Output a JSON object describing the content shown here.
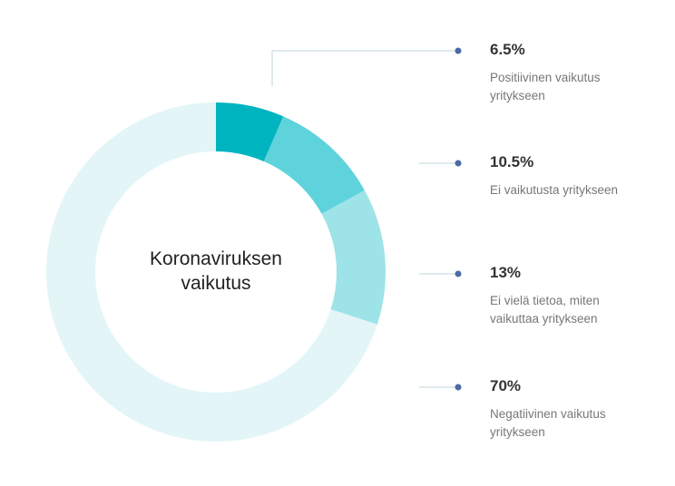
{
  "chart_data": {
    "type": "pie",
    "donut": true,
    "center_label": "Koronaviruksen vaikutus",
    "categories": [
      "Positiivinen vaikutus yritykseen",
      "Ei vaikutusta yritykseen",
      "Ei vielä tietoa, miten vaikuttaa yritykseen",
      "Negatiivinen vaikutus yritykseen"
    ],
    "values": [
      6.5,
      10.5,
      13,
      70
    ],
    "value_labels": [
      "6.5%",
      "10.5%",
      "13%",
      "70%"
    ],
    "colors": [
      "#00b4c0",
      "#5fd3db",
      "#9de3e8",
      "#e3f5f7"
    ],
    "marker_color": "#4a6aa8"
  }
}
